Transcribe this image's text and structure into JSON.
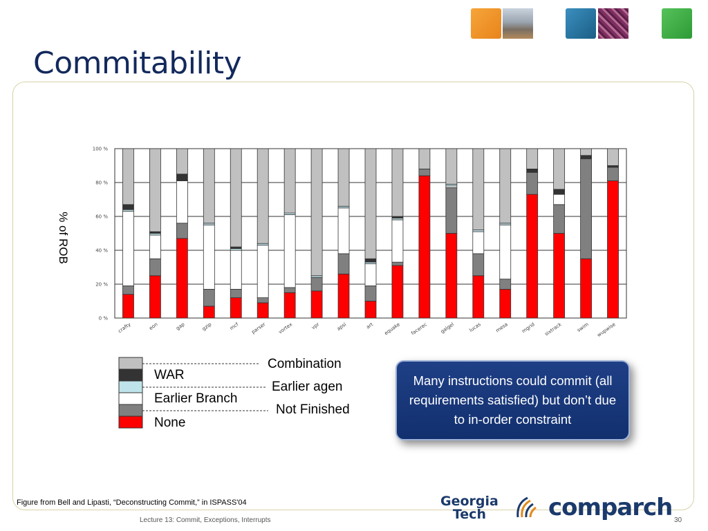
{
  "slide": {
    "title": "Commitability",
    "citation": "Figure from Bell and Lipasti, “Deconstructing Commit,” in ISPASS'04",
    "footer": "Lecture 13: Commit, Exceptions, Interrupts",
    "page_number": "30",
    "logo_georgia": "Georgia",
    "logo_tech": "Tech",
    "logo_comparch": "comparch"
  },
  "callout": {
    "text": "Many instructions could commit (all requirements satisfied) but don’t due to in-order constraint"
  },
  "legend": {
    "entries": [
      {
        "label": "",
        "color": "#c0c0c0"
      },
      {
        "label": "WAR",
        "color": "#333333"
      },
      {
        "label": "",
        "color": "#bfe3ea"
      },
      {
        "label": "Earlier Branch",
        "color": "#ffffff"
      },
      {
        "label": "",
        "color": "#808080"
      },
      {
        "label": "None",
        "color": "#ff0000"
      }
    ],
    "right_labels": [
      "Combination",
      "Earlier agen",
      "Not Finished"
    ]
  },
  "chart_data": {
    "type": "bar",
    "stacked": true,
    "ylabel": "% of ROB",
    "xlabel": "",
    "ylim": [
      0,
      100
    ],
    "yticks": [
      "0 %",
      "20 %",
      "40 %",
      "60 %",
      "80 %",
      "100 %"
    ],
    "grid": true,
    "categories": [
      "crafty",
      "eon",
      "gap",
      "gzip",
      "mcf",
      "parser",
      "vortex",
      "vpr",
      "apsi",
      "art",
      "equake",
      "facerec",
      "galgel",
      "lucas",
      "mesa",
      "mgrid",
      "sixtrack",
      "swim",
      "wupwise"
    ],
    "series": [
      {
        "color": "#ff0000",
        "values": [
          14,
          25,
          47,
          7,
          12,
          9,
          15,
          16,
          26,
          10,
          31,
          84,
          50,
          25,
          17,
          73,
          50,
          35,
          81
        ]
      },
      {
        "color": "#808080",
        "values": [
          5,
          10,
          9,
          10,
          5,
          3,
          3,
          8,
          12,
          9,
          2,
          4,
          27,
          13,
          6,
          13,
          17,
          59,
          8
        ]
      },
      {
        "color": "#ffffff",
        "values": [
          44,
          14,
          25,
          38,
          23,
          31,
          43,
          0,
          27,
          13,
          25,
          0,
          1,
          13,
          32,
          0,
          6,
          0,
          0
        ]
      },
      {
        "color": "#bfe3ea",
        "values": [
          1,
          1,
          0,
          1,
          1,
          1,
          1,
          1,
          1,
          1,
          1,
          0,
          1,
          1,
          1,
          0,
          0,
          0,
          0
        ]
      },
      {
        "color": "#333333",
        "values": [
          3,
          1,
          4,
          0,
          1,
          0,
          0,
          0,
          0,
          2,
          1,
          0,
          0,
          0,
          0,
          2,
          3,
          2,
          1
        ]
      },
      {
        "color": "#c0c0c0",
        "values": [
          33,
          49,
          15,
          44,
          58,
          56,
          38,
          75,
          34,
          65,
          40,
          12,
          21,
          48,
          44,
          12,
          24,
          4,
          10
        ]
      }
    ]
  }
}
